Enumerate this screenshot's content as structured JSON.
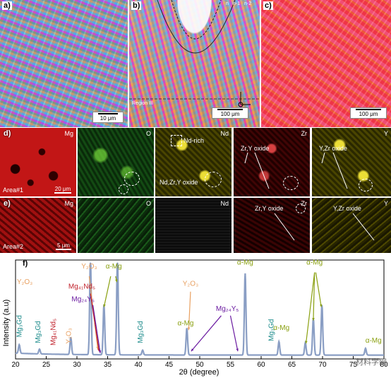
{
  "figure": {
    "panels": {
      "a": {
        "label": "a)",
        "scale": "10 μm"
      },
      "b": {
        "label": "b)",
        "scale": "100 μm",
        "region_note": "Region III",
        "markers": [
          "n",
          "n-1",
          "n-2"
        ]
      },
      "c": {
        "label": "c)",
        "scale": "100 μm"
      }
    },
    "row_d": {
      "label": "d)",
      "area": "Area#1",
      "scale": "20 μm",
      "maps": [
        {
          "element": "Mg",
          "color": "red"
        },
        {
          "element": "O",
          "color": "green"
        },
        {
          "element": "Nd",
          "color": "yellow",
          "notes": [
            "Nd-rich",
            "Nd,Zr,Y oxide"
          ]
        },
        {
          "element": "Zr",
          "color": "darkred",
          "notes": [
            "Zr,Y oxide"
          ]
        },
        {
          "element": "Y",
          "color": "yellow",
          "notes": [
            "Y,Zr oxide"
          ]
        }
      ]
    },
    "row_e": {
      "label": "e)",
      "area": "Area#2",
      "scale": "5 μm",
      "maps": [
        {
          "element": "Mg",
          "color": "red"
        },
        {
          "element": "O",
          "color": "green"
        },
        {
          "element": "Nd",
          "color": "black"
        },
        {
          "element": "Zr",
          "color": "darkred",
          "notes": [
            "Zr,Y oxide"
          ]
        },
        {
          "element": "Y",
          "color": "yellow",
          "notes": [
            "Y,Zr oxide"
          ]
        }
      ]
    },
    "watermark": "材料学网"
  },
  "chart_data": {
    "type": "line",
    "panel_label": "f)",
    "xlabel": "2θ (degree)",
    "ylabel": "Intensity (a.u)",
    "xlim": [
      20,
      80
    ],
    "ylim": [
      0,
      100
    ],
    "xticks": [
      20,
      25,
      30,
      35,
      40,
      45,
      50,
      55,
      60,
      65,
      70,
      75,
      80
    ],
    "line_color": "#8a9ec4",
    "peaks": [
      {
        "x": 20.6,
        "y": 9
      },
      {
        "x": 23.9,
        "y": 5
      },
      {
        "x": 29.0,
        "y": 18
      },
      {
        "x": 32.2,
        "y": 100
      },
      {
        "x": 34.4,
        "y": 52
      },
      {
        "x": 36.6,
        "y": 100
      },
      {
        "x": 40.7,
        "y": 5
      },
      {
        "x": 47.9,
        "y": 28
      },
      {
        "x": 57.4,
        "y": 85
      },
      {
        "x": 62.9,
        "y": 14
      },
      {
        "x": 67.2,
        "y": 13
      },
      {
        "x": 68.5,
        "y": 38
      },
      {
        "x": 69.9,
        "y": 52
      },
      {
        "x": 77.0,
        "y": 7
      }
    ],
    "annotations": [
      {
        "text": "Y₂O₃",
        "color": "#e8a060",
        "x": 21.5,
        "y": 78
      },
      {
        "text": "Mg₃Gd",
        "color": "#1a8a8a",
        "x": 21.0,
        "y": 34
      },
      {
        "text": "Mg₃Gd",
        "color": "#1a8a8a",
        "x": 24.0,
        "y": 28
      },
      {
        "text": "Mg₄₁Nd₅",
        "color": "#c0202a",
        "x": 26.5,
        "y": 28
      },
      {
        "text": "Y₂O₃",
        "color": "#e8a060",
        "x": 29.0,
        "y": 24
      },
      {
        "text": "Y₂O₃",
        "color": "#e8a060",
        "x": 32.0,
        "y": 94
      },
      {
        "text": "Mg₄₁Nd₅",
        "color": "#c0202a",
        "x": 30.8,
        "y": 73
      },
      {
        "text": "Mg₂₄Y₅",
        "color": "#6a1aa0",
        "x": 31.0,
        "y": 60
      },
      {
        "text": "α-Mg",
        "color": "#8aa010",
        "x": 36.0,
        "y": 94
      },
      {
        "text": "Mg₃Gd",
        "color": "#1a8a8a",
        "x": 40.7,
        "y": 28
      },
      {
        "text": "Y₂O₃",
        "color": "#e8a060",
        "x": 48.5,
        "y": 76
      },
      {
        "text": "α-Mg",
        "color": "#8aa010",
        "x": 47.7,
        "y": 35
      },
      {
        "text": "Mg₂₄Y₅",
        "color": "#6a1aa0",
        "x": 54.5,
        "y": 50
      },
      {
        "text": "α-Mg",
        "color": "#8aa010",
        "x": 57.4,
        "y": 98
      },
      {
        "text": "Mg₃Gd",
        "color": "#1a8a8a",
        "x": 62.0,
        "y": 30
      },
      {
        "text": "α-Mg",
        "color": "#8aa010",
        "x": 63.3,
        "y": 30
      },
      {
        "text": "α-Mg",
        "color": "#8aa010",
        "x": 68.7,
        "y": 98
      },
      {
        "text": "α-Mg",
        "color": "#8aa010",
        "x": 78.3,
        "y": 17
      }
    ],
    "arrows": [
      {
        "from": [
          32.0,
          86
        ],
        "to": [
          33.4,
          10
        ],
        "color": "#e8a060"
      },
      {
        "from": [
          32.2,
          68
        ],
        "to": [
          33.6,
          8
        ],
        "color": "#c0202a"
      },
      {
        "from": [
          32.6,
          56
        ],
        "to": [
          33.8,
          6
        ],
        "color": "#6a1aa0"
      },
      {
        "from": [
          35.5,
          86
        ],
        "to": [
          34.4,
          54
        ],
        "color": "#8aa010"
      },
      {
        "from": [
          36.3,
          86
        ],
        "to": [
          36.5,
          80
        ],
        "color": "#8aa010"
      },
      {
        "from": [
          48.5,
          70
        ],
        "to": [
          48.2,
          30
        ],
        "color": "#e8a060"
      },
      {
        "from": [
          53.5,
          45
        ],
        "to": [
          48.6,
          8
        ],
        "color": "#6a1aa0"
      },
      {
        "from": [
          55.0,
          45
        ],
        "to": [
          56.2,
          8
        ],
        "color": "#6a1aa0"
      },
      {
        "from": [
          68.7,
          90
        ],
        "to": [
          67.3,
          16
        ],
        "color": "#8aa010"
      },
      {
        "from": [
          68.7,
          90
        ],
        "to": [
          68.5,
          40
        ],
        "color": "#8aa010"
      },
      {
        "from": [
          68.9,
          90
        ],
        "to": [
          69.8,
          54
        ],
        "color": "#8aa010"
      }
    ]
  }
}
